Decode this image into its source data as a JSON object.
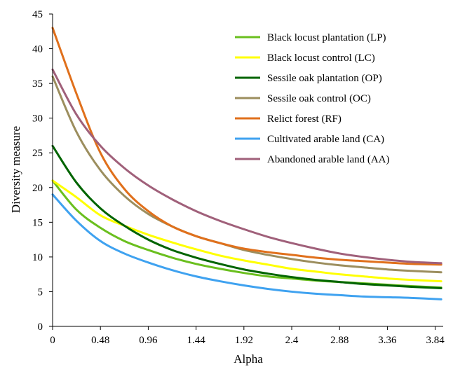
{
  "chart_data": {
    "type": "line",
    "xlabel": "Alpha",
    "ylabel": "Diversity measure",
    "xlim": [
      0,
      3.92
    ],
    "ylim": [
      0,
      45
    ],
    "x_ticks": [
      "0",
      "0.48",
      "0.96",
      "1.44",
      "1.92",
      "2.4",
      "2.88",
      "3.36",
      "3.84"
    ],
    "y_ticks": [
      "0",
      "5",
      "10",
      "15",
      "20",
      "25",
      "30",
      "35",
      "40",
      "45"
    ],
    "grid": false,
    "legend_position": "top-right",
    "x": [
      0,
      0.24,
      0.48,
      0.72,
      0.96,
      1.2,
      1.44,
      1.68,
      1.92,
      2.16,
      2.4,
      2.64,
      2.88,
      3.12,
      3.36,
      3.6,
      3.9
    ],
    "series": [
      {
        "name": "Black locust plantation (LP)",
        "color": "#6abf1e",
        "values": [
          21,
          16.8,
          14.2,
          12.3,
          11.0,
          9.9,
          9.0,
          8.3,
          7.7,
          7.2,
          6.9,
          6.6,
          6.4,
          6.2,
          6.0,
          5.8,
          5.6
        ]
      },
      {
        "name": "Black locust control (LC)",
        "color": "#ffff00",
        "values": [
          21,
          18.6,
          16.0,
          14.5,
          13.2,
          12.1,
          11.1,
          10.2,
          9.5,
          8.9,
          8.3,
          7.9,
          7.5,
          7.2,
          6.9,
          6.7,
          6.5
        ]
      },
      {
        "name": "Sessile oak plantation (OP)",
        "color": "#006400",
        "values": [
          26,
          20.7,
          17.0,
          14.5,
          12.5,
          11.0,
          9.9,
          9.0,
          8.2,
          7.6,
          7.1,
          6.7,
          6.4,
          6.1,
          5.9,
          5.7,
          5.5
        ]
      },
      {
        "name": "Sessile oak control (OC)",
        "color": "#9c8e5e",
        "values": [
          36,
          28.0,
          22.5,
          18.8,
          16.2,
          14.4,
          13.0,
          12.0,
          11.0,
          10.3,
          9.7,
          9.2,
          8.8,
          8.5,
          8.2,
          8.0,
          7.8
        ]
      },
      {
        "name": "Relict forest (RF)",
        "color": "#e0701c",
        "values": [
          43,
          33.5,
          25.0,
          19.8,
          16.6,
          14.4,
          13.0,
          12.0,
          11.2,
          10.7,
          10.3,
          9.9,
          9.6,
          9.4,
          9.2,
          9.0,
          8.9
        ]
      },
      {
        "name": "Cultivated arable land (CA)",
        "color": "#3fa2f0",
        "values": [
          19,
          15.2,
          12.3,
          10.5,
          9.2,
          8.1,
          7.2,
          6.5,
          5.9,
          5.4,
          5.0,
          4.7,
          4.5,
          4.3,
          4.2,
          4.1,
          3.9
        ]
      },
      {
        "name": "Abandoned arable land (AA)",
        "color": "#a0607a",
        "values": [
          37,
          30.5,
          26.0,
          22.8,
          20.3,
          18.3,
          16.6,
          15.2,
          14.0,
          12.9,
          12.0,
          11.2,
          10.5,
          10.0,
          9.6,
          9.3,
          9.1
        ]
      }
    ]
  }
}
